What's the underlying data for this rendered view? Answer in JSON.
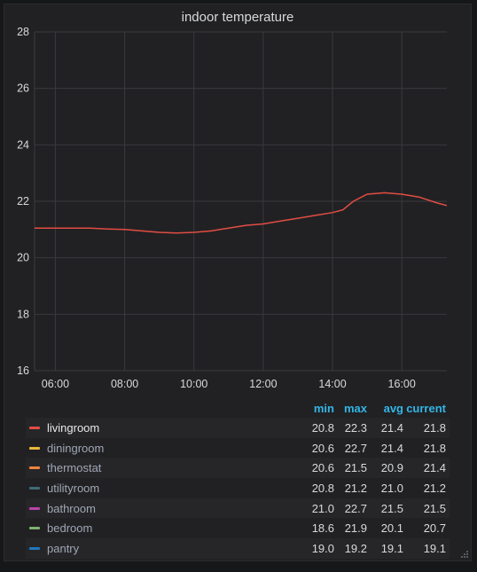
{
  "panel": {
    "title": "indoor temperature"
  },
  "legend": {
    "headers": {
      "min": "min",
      "max": "max",
      "avg": "avg",
      "current": "current"
    },
    "items": [
      {
        "name": "livingroom",
        "color": "#e24d42",
        "min": "20.8",
        "max": "22.3",
        "avg": "21.4",
        "current": "21.8",
        "active": true
      },
      {
        "name": "diningroom",
        "color": "#eab839",
        "min": "20.6",
        "max": "22.7",
        "avg": "21.4",
        "current": "21.8",
        "active": false
      },
      {
        "name": "thermostat",
        "color": "#ef843c",
        "min": "20.6",
        "max": "21.5",
        "avg": "20.9",
        "current": "21.4",
        "active": false
      },
      {
        "name": "utilityroom",
        "color": "#3f6b75",
        "min": "20.8",
        "max": "21.2",
        "avg": "21.0",
        "current": "21.2",
        "active": false
      },
      {
        "name": "bathroom",
        "color": "#ba43a9",
        "min": "21.0",
        "max": "22.7",
        "avg": "21.5",
        "current": "21.5",
        "active": false
      },
      {
        "name": "bedroom",
        "color": "#7eb26d",
        "min": "18.6",
        "max": "21.9",
        "avg": "20.1",
        "current": "20.7",
        "active": false
      },
      {
        "name": "pantry",
        "color": "#1f78c1",
        "min": "19.0",
        "max": "19.2",
        "avg": "19.1",
        "current": "19.1",
        "active": false
      }
    ]
  },
  "chart_data": {
    "type": "line",
    "title": "indoor temperature",
    "xlabel": "",
    "ylabel": "",
    "x_ticks": [
      "06:00",
      "08:00",
      "10:00",
      "12:00",
      "14:00",
      "16:00"
    ],
    "y_ticks": [
      16,
      18,
      20,
      22,
      24,
      26,
      28
    ],
    "xlim_hours": [
      5.4,
      17.3
    ],
    "ylim": [
      16,
      28
    ],
    "grid": true,
    "series": [
      {
        "name": "livingroom",
        "color": "#e24d42",
        "points": [
          [
            5.4,
            21.05
          ],
          [
            6.0,
            21.05
          ],
          [
            6.5,
            21.05
          ],
          [
            7.0,
            21.05
          ],
          [
            7.5,
            21.02
          ],
          [
            8.0,
            21.0
          ],
          [
            8.5,
            20.95
          ],
          [
            9.0,
            20.9
          ],
          [
            9.5,
            20.88
          ],
          [
            10.0,
            20.9
          ],
          [
            10.5,
            20.95
          ],
          [
            11.0,
            21.05
          ],
          [
            11.5,
            21.15
          ],
          [
            12.0,
            21.2
          ],
          [
            12.5,
            21.3
          ],
          [
            13.0,
            21.4
          ],
          [
            13.5,
            21.5
          ],
          [
            14.0,
            21.6
          ],
          [
            14.3,
            21.7
          ],
          [
            14.6,
            22.0
          ],
          [
            15.0,
            22.25
          ],
          [
            15.5,
            22.3
          ],
          [
            16.0,
            22.25
          ],
          [
            16.5,
            22.15
          ],
          [
            17.0,
            21.95
          ],
          [
            17.3,
            21.85
          ]
        ]
      }
    ],
    "legend_position": "bottom"
  }
}
